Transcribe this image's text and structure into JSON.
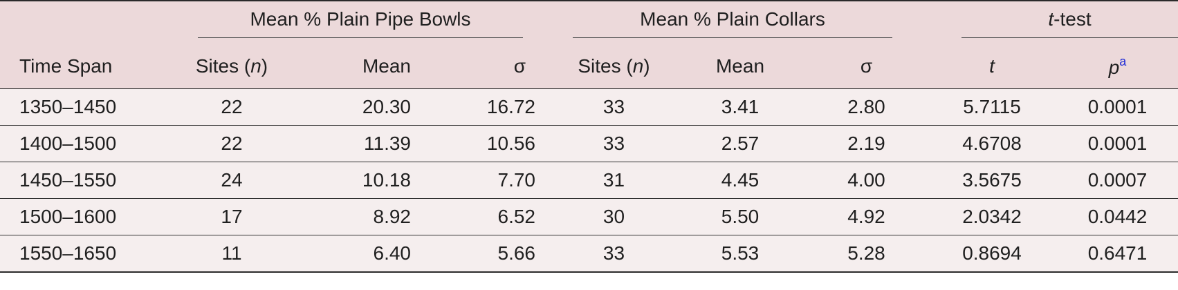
{
  "headers": {
    "time_span": "Time Span",
    "group_bowls": "Mean % Plain Pipe Bowls",
    "group_collars": "Mean % Plain Collars",
    "group_ttest_italic": "t",
    "group_ttest_rest": "-test",
    "sites_prefix": "Sites (",
    "sites_n": "n",
    "sites_suffix": ")",
    "mean": "Mean",
    "sigma": "σ",
    "t": "t",
    "p": "p",
    "p_footnote": "a"
  },
  "rows": [
    {
      "span": "1350–1450",
      "bowl_n": "22",
      "bowl_mean": "20.30",
      "bowl_sigma": "16.72",
      "collar_n": "33",
      "collar_mean": "3.41",
      "collar_sigma": "2.80",
      "t": "5.7115",
      "p": "0.0001"
    },
    {
      "span": "1400–1500",
      "bowl_n": "22",
      "bowl_mean": "11.39",
      "bowl_sigma": "10.56",
      "collar_n": "33",
      "collar_mean": "2.57",
      "collar_sigma": "2.19",
      "t": "4.6708",
      "p": "0.0001"
    },
    {
      "span": "1450–1550",
      "bowl_n": "24",
      "bowl_mean": "10.18",
      "bowl_sigma": "7.70",
      "collar_n": "31",
      "collar_mean": "4.45",
      "collar_sigma": "4.00",
      "t": "3.5675",
      "p": "0.0007"
    },
    {
      "span": "1500–1600",
      "bowl_n": "17",
      "bowl_mean": "8.92",
      "bowl_sigma": "6.52",
      "collar_n": "30",
      "collar_mean": "5.50",
      "collar_sigma": "4.92",
      "t": "2.0342",
      "p": "0.0442"
    },
    {
      "span": "1550–1650",
      "bowl_n": "11",
      "bowl_mean": "6.40",
      "bowl_sigma": "5.66",
      "collar_n": "33",
      "collar_mean": "5.53",
      "collar_sigma": "5.28",
      "t": "0.8694",
      "p": "0.6471"
    }
  ]
}
